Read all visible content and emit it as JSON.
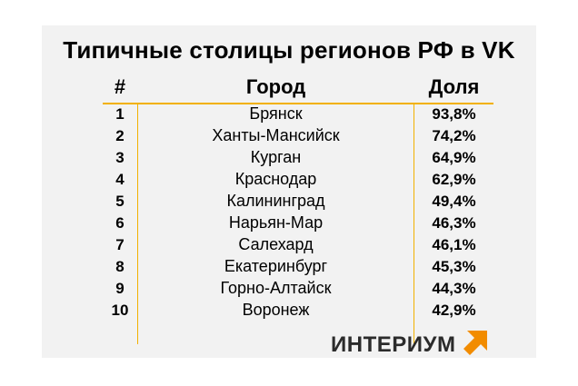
{
  "title": "Типичные столицы регионов РФ в VK",
  "table": {
    "headers": {
      "num": "#",
      "city": "Город",
      "share": "Доля"
    },
    "rows": [
      {
        "num": "1",
        "city": "Брянск",
        "share": "93,8%"
      },
      {
        "num": "2",
        "city": "Ханты-Мансийск",
        "share": "74,2%"
      },
      {
        "num": "3",
        "city": "Курган",
        "share": "64,9%"
      },
      {
        "num": "4",
        "city": "Краснодар",
        "share": "62,9%"
      },
      {
        "num": "5",
        "city": "Калининград",
        "share": "49,4%"
      },
      {
        "num": "6",
        "city": "Нарьян-Мар",
        "share": "46,3%"
      },
      {
        "num": "7",
        "city": "Салехард",
        "share": "46,1%"
      },
      {
        "num": "8",
        "city": "Екатеринбург",
        "share": "45,3%"
      },
      {
        "num": "9",
        "city": "Горно-Алтайск",
        "share": "44,3%"
      },
      {
        "num": "10",
        "city": "Воронеж",
        "share": "42,9%"
      }
    ]
  },
  "logo": {
    "text": "ИНТЕРИУМ",
    "icon": "arrow-up-right-icon",
    "accent": "#f28c00"
  },
  "colors": {
    "panel": "#f2f2f2",
    "rule": "#f2b100",
    "text": "#000000"
  }
}
